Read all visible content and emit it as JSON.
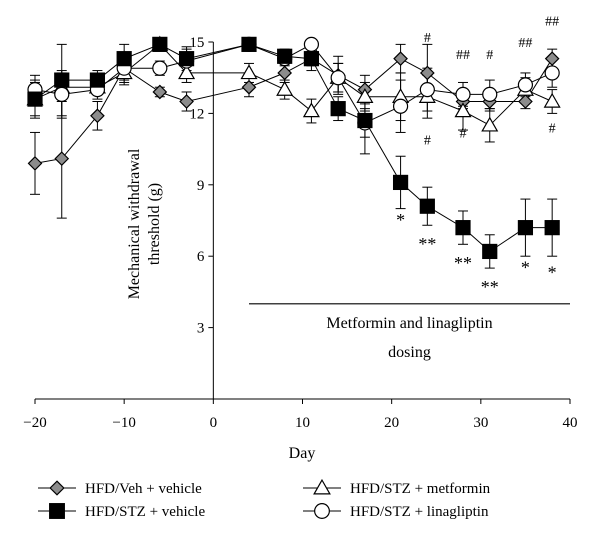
{
  "chart_data": {
    "type": "line",
    "xlabel": "Day",
    "ylabel_lines": [
      "Mechanical withdrawal",
      "threshold (g)"
    ],
    "xlim": [
      -20,
      40
    ],
    "ylim": [
      0,
      15
    ],
    "xticks": [
      -20,
      -10,
      0,
      10,
      20,
      30,
      40
    ],
    "yticks": [
      3,
      6,
      9,
      12,
      15
    ],
    "x_tick_labels": [
      "−20",
      "−10",
      "0",
      "10",
      "20",
      "30",
      "40"
    ],
    "y_tick_labels": [
      "3",
      "6",
      "9",
      "12",
      "15"
    ],
    "dosing": {
      "line_1": "Metformin and linagliptin",
      "line_2": "dosing",
      "x_start": 4,
      "x_end": 40,
      "y": 4
    },
    "series": [
      {
        "name": "HFD/Veh + vehicle",
        "marker": "diamond",
        "fill": "#8c8c8c",
        "x": [
          -20,
          -17,
          -13,
          -10,
          -6,
          -3,
          4,
          8,
          11,
          14,
          17,
          21,
          24,
          28,
          31,
          35,
          38
        ],
        "y": [
          9.9,
          10.1,
          11.9,
          13.9,
          12.9,
          12.5,
          13.1,
          13.7,
          14.3,
          13.6,
          13.0,
          14.3,
          13.7,
          12.5,
          12.5,
          12.5,
          14.3
        ],
        "err": [
          1.3,
          2.5,
          0.6,
          0.5,
          0.2,
          0.4,
          0.4,
          0.4,
          0.3,
          0.8,
          0.6,
          0.6,
          1.2,
          0.3,
          0.4,
          0.3,
          0.4
        ]
      },
      {
        "name": "HFD/STZ + vehicle",
        "marker": "square",
        "fill": "#000000",
        "x": [
          -20,
          -17,
          -13,
          -10,
          -6,
          -3,
          4,
          8,
          11,
          14,
          17,
          21,
          24,
          28,
          31,
          35,
          38
        ],
        "y": [
          12.6,
          13.4,
          13.4,
          14.3,
          14.9,
          14.3,
          14.9,
          14.4,
          14.3,
          12.2,
          11.7,
          9.1,
          8.1,
          7.2,
          6.2,
          7.2,
          7.2
        ],
        "err": [
          0.8,
          1.5,
          0.4,
          0.6,
          0.2,
          0.5,
          0.2,
          0.3,
          0.5,
          0.5,
          1.4,
          1.1,
          0.8,
          0.7,
          0.7,
          1.2,
          1.2
        ]
      },
      {
        "name": "HFD/STZ + metformin",
        "marker": "triangle",
        "fill": "#ffffff",
        "x": [
          -20,
          -17,
          -13,
          -10,
          -6,
          -3,
          4,
          8,
          11,
          14,
          17,
          21,
          24,
          28,
          31,
          35,
          38
        ],
        "y": [
          12.6,
          13.1,
          13.1,
          13.7,
          14.9,
          13.7,
          13.7,
          13.0,
          12.1,
          13.5,
          12.7,
          12.7,
          12.7,
          12.1,
          11.5,
          13.0,
          12.5
        ],
        "err": [
          0.7,
          0.6,
          0.3,
          0.5,
          0.2,
          0.4,
          0.4,
          0.4,
          0.5,
          0.6,
          0.6,
          1.0,
          0.9,
          0.8,
          0.7,
          0.5,
          0.5
        ]
      },
      {
        "name": "HFD/STZ + linagliptin",
        "marker": "circle",
        "fill": "#ffffff",
        "x": [
          -20,
          -17,
          -13,
          -10,
          -6,
          -3,
          4,
          8,
          11,
          14,
          17,
          21,
          24,
          28,
          31,
          35,
          38
        ],
        "y": [
          13.0,
          12.8,
          13.0,
          13.9,
          13.9,
          14.2,
          14.9,
          14.3,
          14.9,
          13.5,
          11.6,
          12.3,
          13.0,
          12.8,
          12.8,
          13.2,
          13.7
        ],
        "err": [
          0.6,
          1.0,
          0.4,
          0.6,
          0.3,
          0.5,
          0.2,
          0.3,
          0.2,
          0.6,
          0.6,
          1.1,
          0.9,
          0.5,
          0.6,
          0.5,
          0.6
        ]
      }
    ],
    "annotations": [
      {
        "x": 21,
        "y": 7.6,
        "text": "*"
      },
      {
        "x": 24,
        "y": 6.6,
        "text": "**"
      },
      {
        "x": 28,
        "y": 5.8,
        "text": "**"
      },
      {
        "x": 31,
        "y": 4.8,
        "text": "**"
      },
      {
        "x": 35,
        "y": 5.6,
        "text": "*"
      },
      {
        "x": 38,
        "y": 5.4,
        "text": "*"
      },
      {
        "x": 24,
        "y": 15.2,
        "text": "#"
      },
      {
        "x": 24,
        "y": 10.9,
        "text": "#"
      },
      {
        "x": 28,
        "y": 14.5,
        "text": "##"
      },
      {
        "x": 28,
        "y": 11.2,
        "text": "#"
      },
      {
        "x": 31,
        "y": 14.5,
        "text": "#"
      },
      {
        "x": 35,
        "y": 15.0,
        "text": "##"
      },
      {
        "x": 38,
        "y": 15.9,
        "text": "##"
      },
      {
        "x": 38,
        "y": 11.4,
        "text": "#"
      }
    ],
    "legend": {
      "placement": "bottom",
      "entries": [
        {
          "label": "HFD/Veh + vehicle",
          "marker": "diamond",
          "fill": "#8c8c8c"
        },
        {
          "label": "HFD/STZ + vehicle",
          "marker": "square",
          "fill": "#000000"
        },
        {
          "label": "HFD/STZ + metformin",
          "marker": "triangle",
          "fill": "#ffffff"
        },
        {
          "label": "HFD/STZ + linagliptin",
          "marker": "circle",
          "fill": "#ffffff"
        }
      ]
    }
  }
}
